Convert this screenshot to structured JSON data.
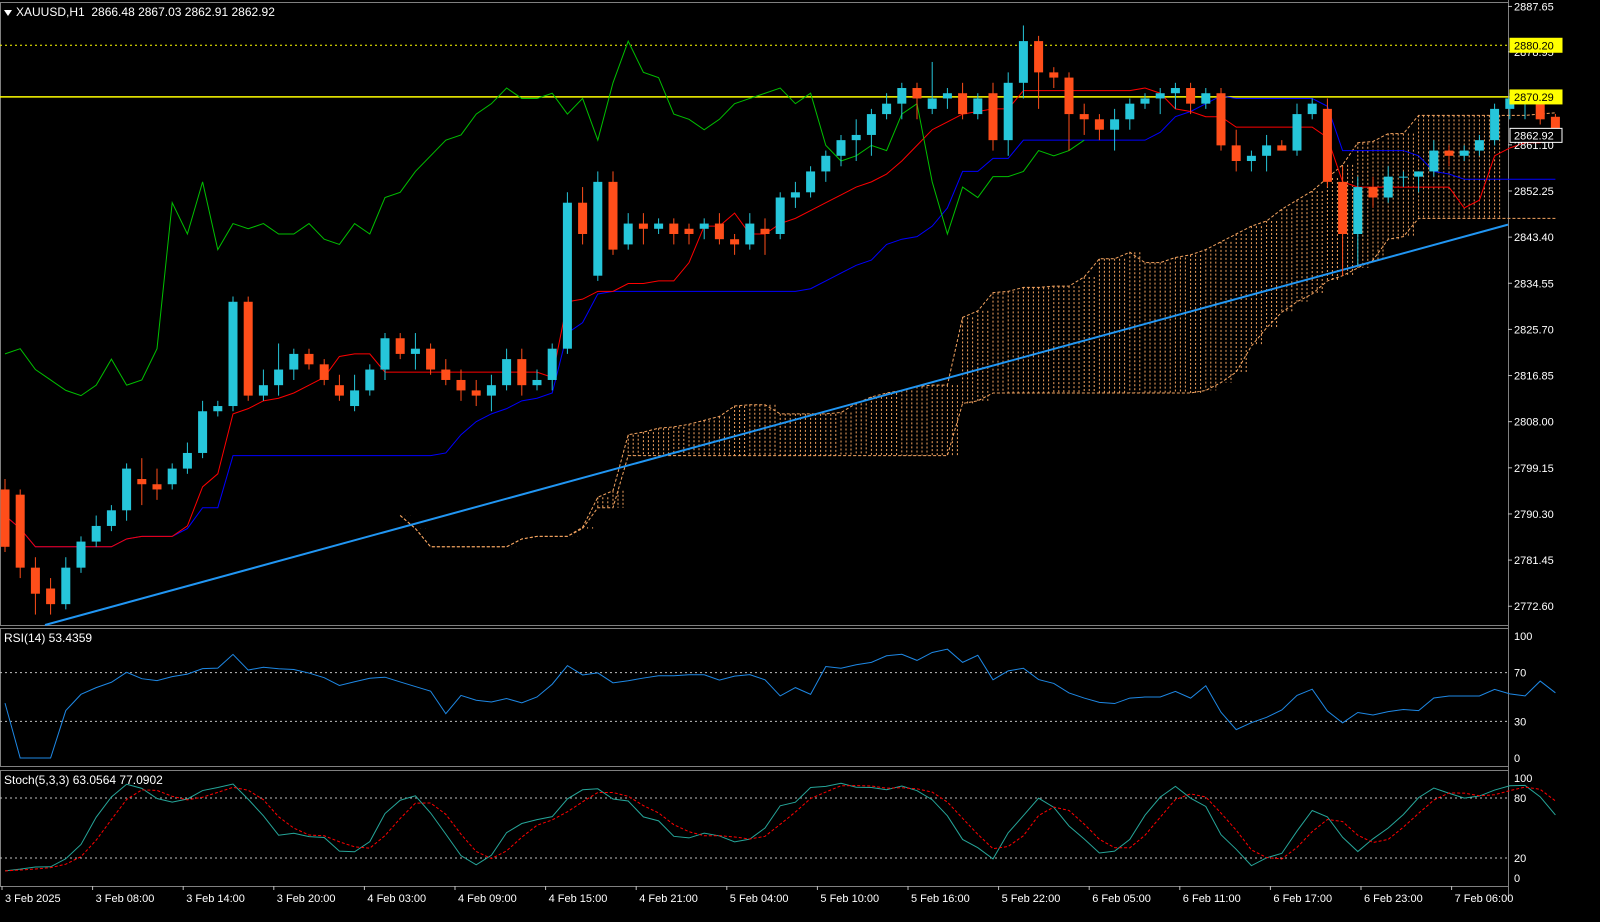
{
  "header": {
    "symbol": "XAUUSD,H1",
    "ohlc": "2866.48 2867.03 2862.91 2862.92",
    "rsi_label": "RSI(14) 53.4359",
    "stoch_label": "Stoch(5,3,3) 63.0564 77.0902"
  },
  "colors": {
    "background": "#000000",
    "bull": "#26c6da",
    "bear": "#ff4e1a",
    "tenkan": "#ff0000",
    "kijun": "#0000ff",
    "chikou": "#00c000",
    "cloud": "#f4a460",
    "trendline": "#2196f3",
    "hline": "#ffff00",
    "rsi": "#1e88e5",
    "stoch_main": "#26a69a",
    "stoch_signal": "#ff0000",
    "grid": "#c0c0c0"
  },
  "price_axis": {
    "labels": [
      "2887.65",
      "2878.95",
      "2870.29",
      "2861.10",
      "2852.25",
      "2843.40",
      "2834.55",
      "2825.70",
      "2816.85",
      "2808.00",
      "2799.15",
      "2790.30",
      "2781.45",
      "2772.60"
    ],
    "tags": [
      {
        "text": "2880.20",
        "style": "yellow"
      },
      {
        "text": "2870.29",
        "style": "yellow"
      },
      {
        "text": "2862.92",
        "style": "white"
      }
    ]
  },
  "rsi_axis": [
    "100",
    "70",
    "30",
    "0"
  ],
  "stoch_axis": [
    "100",
    "80",
    "20",
    "0"
  ],
  "time_axis": [
    "3 Feb 2025",
    "3 Feb 08:00",
    "3 Feb 14:00",
    "3 Feb 20:00",
    "4 Feb 03:00",
    "4 Feb 09:00",
    "4 Feb 15:00",
    "4 Feb 21:00",
    "5 Feb 04:00",
    "5 Feb 10:00",
    "5 Feb 16:00",
    "5 Feb 22:00",
    "6 Feb 05:00",
    "6 Feb 11:00",
    "6 Feb 17:00",
    "6 Feb 23:00",
    "7 Feb 06:00"
  ],
  "chart_data": {
    "type": "candlestick",
    "symbol": "XAUUSD",
    "timeframe": "H1",
    "ylim": [
      2769.0,
      2888.5
    ],
    "horizontal_lines": [
      2880.2,
      2870.29
    ],
    "trendline": {
      "start": [
        0,
        2769.0
      ],
      "end": [
        99,
        2845.8
      ]
    },
    "candles": [
      [
        2795,
        2797,
        2783,
        2784
      ],
      [
        2794,
        2795,
        2778,
        2780
      ],
      [
        2780,
        2782,
        2771,
        2775
      ],
      [
        2776,
        2778,
        2771,
        2773
      ],
      [
        2773,
        2782,
        2772,
        2780
      ],
      [
        2780,
        2786,
        2779,
        2785
      ],
      [
        2785,
        2790,
        2784,
        2788
      ],
      [
        2788,
        2792,
        2787,
        2791
      ],
      [
        2791,
        2800,
        2789,
        2799
      ],
      [
        2797,
        2801,
        2792,
        2796
      ],
      [
        2796,
        2799,
        2793,
        2795
      ],
      [
        2796,
        2800,
        2795,
        2799
      ],
      [
        2799,
        2804,
        2798,
        2802
      ],
      [
        2802,
        2812,
        2801,
        2810
      ],
      [
        2810,
        2812,
        2809,
        2811
      ],
      [
        2811,
        2832,
        2810,
        2831
      ],
      [
        2831,
        2832,
        2812,
        2813
      ],
      [
        2813,
        2818,
        2812,
        2815
      ],
      [
        2815,
        2823,
        2813,
        2818
      ],
      [
        2818,
        2822,
        2816,
        2821
      ],
      [
        2821,
        2822,
        2818,
        2819
      ],
      [
        2819,
        2820,
        2815,
        2816
      ],
      [
        2815,
        2817,
        2812,
        2813
      ],
      [
        2811,
        2817,
        2810,
        2814
      ],
      [
        2814,
        2819,
        2813,
        2818
      ],
      [
        2818,
        2825,
        2816,
        2824
      ],
      [
        2824,
        2825,
        2820,
        2821
      ],
      [
        2821,
        2825,
        2818,
        2822
      ],
      [
        2822,
        2823,
        2817,
        2818
      ],
      [
        2818,
        2820,
        2815,
        2816
      ],
      [
        2816,
        2818,
        2812,
        2814
      ],
      [
        2814,
        2816,
        2811,
        2813
      ],
      [
        2813,
        2817,
        2810,
        2815
      ],
      [
        2815,
        2822,
        2814,
        2820
      ],
      [
        2820,
        2822,
        2813,
        2815
      ],
      [
        2815,
        2818,
        2814,
        2816
      ],
      [
        2816,
        2823,
        2814,
        2822
      ],
      [
        2822,
        2852,
        2821,
        2850
      ],
      [
        2850,
        2853,
        2842,
        2844
      ],
      [
        2836,
        2856,
        2835,
        2854
      ],
      [
        2854,
        2856,
        2840,
        2841
      ],
      [
        2842,
        2848,
        2841,
        2846
      ],
      [
        2846,
        2848,
        2842,
        2845
      ],
      [
        2845,
        2847,
        2844,
        2846
      ],
      [
        2846,
        2847,
        2842,
        2844
      ],
      [
        2845,
        2846,
        2842,
        2844
      ],
      [
        2845,
        2847,
        2843,
        2846
      ],
      [
        2846,
        2848,
        2842,
        2843
      ],
      [
        2843,
        2844,
        2840,
        2842
      ],
      [
        2842,
        2848,
        2841,
        2846
      ],
      [
        2845,
        2847,
        2840,
        2844
      ],
      [
        2844,
        2852,
        2843,
        2851
      ],
      [
        2851,
        2854,
        2849,
        2852
      ],
      [
        2852,
        2857,
        2851,
        2856
      ],
      [
        2856,
        2860,
        2854,
        2859
      ],
      [
        2859,
        2863,
        2857,
        2862
      ],
      [
        2862,
        2866,
        2858,
        2863
      ],
      [
        2863,
        2868,
        2859,
        2867
      ],
      [
        2867,
        2871,
        2866,
        2869
      ],
      [
        2869,
        2873,
        2866,
        2872
      ],
      [
        2872,
        2873,
        2866,
        2870
      ],
      [
        2868,
        2877,
        2867,
        2870
      ],
      [
        2870,
        2872,
        2868,
        2871
      ],
      [
        2871,
        2873,
        2866,
        2867
      ],
      [
        2867,
        2871,
        2866,
        2870
      ],
      [
        2871,
        2873,
        2860,
        2862
      ],
      [
        2862,
        2875,
        2859,
        2873
      ],
      [
        2873,
        2884,
        2870,
        2881
      ],
      [
        2881,
        2882,
        2868,
        2875
      ],
      [
        2875,
        2876,
        2872,
        2874
      ],
      [
        2874,
        2875,
        2860,
        2867
      ],
      [
        2867,
        2869,
        2863,
        2866
      ],
      [
        2866,
        2867,
        2862,
        2864
      ],
      [
        2864,
        2868,
        2860,
        2866
      ],
      [
        2866,
        2870,
        2864,
        2869
      ],
      [
        2869,
        2871,
        2868,
        2870
      ],
      [
        2870,
        2872,
        2867,
        2871
      ],
      [
        2871,
        2873,
        2868,
        2872
      ],
      [
        2872,
        2873,
        2867,
        2869
      ],
      [
        2869,
        2872,
        2868,
        2871
      ],
      [
        2871,
        2872,
        2860,
        2861
      ],
      [
        2861,
        2864,
        2856,
        2858
      ],
      [
        2858,
        2860,
        2856,
        2859
      ],
      [
        2859,
        2863,
        2856,
        2861
      ],
      [
        2861,
        2862,
        2860,
        2860
      ],
      [
        2860,
        2869,
        2859,
        2867
      ],
      [
        2867,
        2870,
        2866,
        2869
      ],
      [
        2868,
        2870,
        2853,
        2854
      ],
      [
        2854,
        2857,
        2836,
        2844
      ],
      [
        2844,
        2855,
        2838,
        2853
      ],
      [
        2853,
        2855,
        2849,
        2851
      ],
      [
        2851,
        2857,
        2850,
        2855
      ],
      [
        2855,
        2856,
        2853,
        2855
      ],
      [
        2855,
        2856,
        2852,
        2856
      ],
      [
        2856,
        2862,
        2855,
        2860
      ],
      [
        2860,
        2861,
        2857,
        2859
      ],
      [
        2859,
        2861,
        2858,
        2860
      ],
      [
        2860,
        2863,
        2859,
        2862
      ],
      [
        2862,
        2869,
        2861,
        2868
      ],
      [
        2868,
        2871,
        2866,
        2870
      ],
      [
        2869,
        2871,
        2866,
        2870
      ],
      [
        2869,
        2870,
        2865,
        2866
      ],
      [
        2866.48,
        2867.03,
        2862.91,
        2862.92
      ]
    ],
    "chikou_end_index": 71,
    "rsi": {
      "period": 14,
      "last": 53.4359,
      "levels": [
        30,
        70
      ],
      "ylim": [
        0,
        100
      ]
    },
    "stoch": {
      "params": [
        5,
        3,
        3
      ],
      "main_last": 63.0564,
      "signal_last": 77.0902,
      "levels": [
        20,
        80
      ],
      "ylim": [
        0,
        100
      ]
    }
  }
}
